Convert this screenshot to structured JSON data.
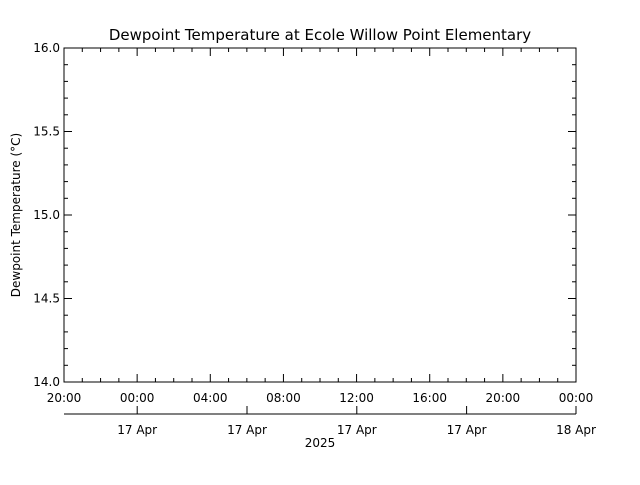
{
  "chart_data": {
    "type": "line",
    "title": "Dewpoint Temperature at Ecole Willow Point Elementary",
    "ylabel": "Dewpoint Temperature (°C)",
    "xlabel": "2025",
    "ylim": [
      14.0,
      16.0
    ],
    "ytick_labels": [
      "14.0",
      "14.5",
      "15.0",
      "15.5",
      "16.0"
    ],
    "x_tick_labels": [
      "20:00",
      "00:00",
      "04:00",
      "08:00",
      "12:00",
      "16:00",
      "20:00",
      "00:00"
    ],
    "date_labels": [
      "17 Apr",
      "17 Apr",
      "17 Apr",
      "17 Apr",
      "18 Apr"
    ],
    "series": [],
    "grid": false
  }
}
